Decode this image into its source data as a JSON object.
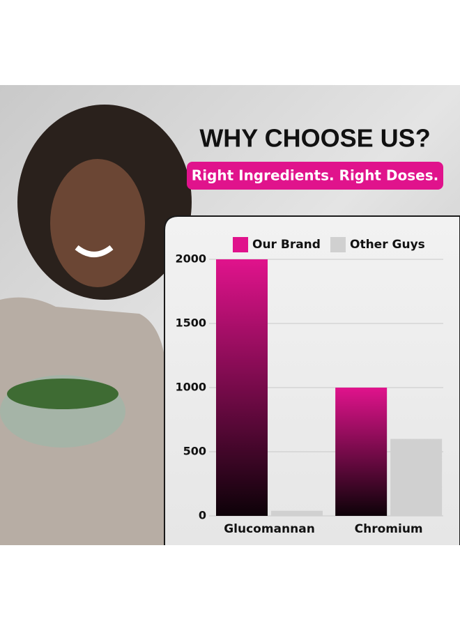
{
  "chart_data": {
    "type": "bar",
    "title": "WHY CHOOSE US?",
    "subtitle": "Right Ingredients. Right Doses.",
    "categories": [
      "Glucomannan",
      "Chromium"
    ],
    "series": [
      {
        "name": "Our Brand",
        "color": "#e0138c",
        "values": [
          2000,
          1000
        ]
      },
      {
        "name": "Other Guys",
        "color": "#d0d0d0",
        "values": [
          40,
          600
        ]
      }
    ],
    "ylim": [
      0,
      2000
    ],
    "yticks": [
      0,
      500,
      1000,
      1500,
      2000
    ],
    "grid": true,
    "legend": "top"
  }
}
